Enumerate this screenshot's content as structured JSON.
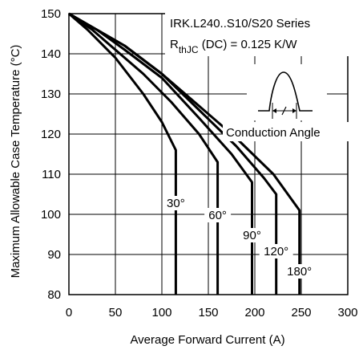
{
  "chart_data": {
    "type": "line",
    "title": "IRK.L240..S10/S20 Series",
    "subtitle": {
      "main": "R",
      "sub": "thJC",
      "rest": " (DC) = 0.125 K/W"
    },
    "xlabel": "Average Forward Current (A)",
    "ylabel": "Maximum Allowable Case Temperature (°C)",
    "xlim": [
      0,
      300
    ],
    "ylim": [
      80,
      150
    ],
    "xticks": [
      0,
      50,
      100,
      150,
      200,
      250,
      300
    ],
    "yticks": [
      80,
      90,
      100,
      110,
      120,
      130,
      140,
      150
    ],
    "grid": true,
    "inset_label": "Conduction Angle",
    "series": [
      {
        "name": "30°",
        "points": [
          [
            0,
            150
          ],
          [
            20,
            146
          ],
          [
            50,
            139
          ],
          [
            80,
            130
          ],
          [
            100,
            123
          ],
          [
            115,
            116
          ],
          [
            115,
            80
          ]
        ]
      },
      {
        "name": "60°",
        "points": [
          [
            0,
            150
          ],
          [
            25,
            146
          ],
          [
            50,
            141
          ],
          [
            80,
            135
          ],
          [
            110,
            128
          ],
          [
            140,
            120
          ],
          [
            160,
            113
          ],
          [
            160,
            80
          ]
        ]
      },
      {
        "name": "90°",
        "points": [
          [
            0,
            150
          ],
          [
            30,
            146
          ],
          [
            60,
            141
          ],
          [
            100,
            134
          ],
          [
            140,
            124
          ],
          [
            175,
            115
          ],
          [
            197,
            108
          ],
          [
            197,
            80
          ]
        ]
      },
      {
        "name": "120°",
        "points": [
          [
            0,
            150
          ],
          [
            30,
            146
          ],
          [
            60,
            142
          ],
          [
            100,
            135
          ],
          [
            140,
            126
          ],
          [
            180,
            117
          ],
          [
            210,
            109
          ],
          [
            223,
            105
          ],
          [
            223,
            80
          ]
        ]
      },
      {
        "name": "180°",
        "points": [
          [
            0,
            150
          ],
          [
            30,
            146
          ],
          [
            60,
            142
          ],
          [
            100,
            135
          ],
          [
            140,
            127
          ],
          [
            180,
            119
          ],
          [
            220,
            110
          ],
          [
            248,
            101
          ],
          [
            248,
            80
          ]
        ]
      }
    ],
    "series_label_positions": [
      {
        "name": "30°",
        "x": 115,
        "y": 102
      },
      {
        "name": "60°",
        "x": 160,
        "y": 99
      },
      {
        "name": "90°",
        "x": 197,
        "y": 94
      },
      {
        "name": "120°",
        "x": 223,
        "y": 90
      },
      {
        "name": "180°",
        "x": 248,
        "y": 85
      }
    ]
  }
}
